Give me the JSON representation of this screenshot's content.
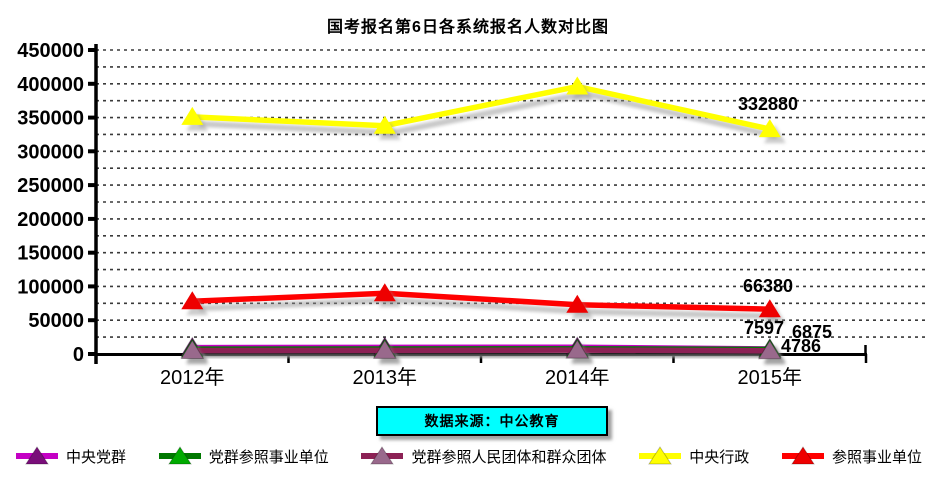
{
  "title": "国考报名第6日各系统报名人数对比图",
  "source_box": {
    "text": "数据来源：中公教育",
    "bg_color": "#00FFFF"
  },
  "chart_data": {
    "type": "line",
    "title": "国考报名第6日各系统报名人数对比图",
    "categories": [
      "2012年",
      "2013年",
      "2014年",
      "2015年"
    ],
    "ylim": [
      0,
      450000
    ],
    "y_tick_step": 50000,
    "grid_step": 25000,
    "y_tick_labels": [
      "0",
      "50000",
      "100000",
      "150000",
      "200000",
      "250000",
      "300000",
      "350000",
      "400000",
      "450000"
    ],
    "grid": true,
    "grid_style": "dashed",
    "legend_position": "bottom",
    "series": [
      {
        "name": "中央党群",
        "line_color": "#C400C4",
        "marker_color": "#7A0E7A",
        "marker": "triangle",
        "values": [
          9500,
          9800,
          10000,
          7597
        ],
        "labeled_value": 7597
      },
      {
        "name": "党群参照事业单位",
        "line_color": "#007800",
        "marker_color": "#00AA00",
        "marker": "triangle",
        "values": [
          7200,
          7400,
          7600,
          6875
        ],
        "labeled_value": 6875
      },
      {
        "name": "党群参照人民团体和群众团体",
        "line_color": "#8C2155",
        "marker_color": "#99698C",
        "marker": "triangle",
        "values": [
          5200,
          5400,
          5700,
          4786
        ],
        "labeled_value": 4786
      },
      {
        "name": "中央行政",
        "line_color": "#FFFF00",
        "marker_color": "#FFFF00",
        "marker": "triangle",
        "values": [
          351000,
          338000,
          396000,
          332880
        ],
        "labeled_value": 332880
      },
      {
        "name": "参照事业单位",
        "line_color": "#FF0000",
        "marker_color": "#EE0000",
        "marker": "triangle",
        "values": [
          78000,
          90000,
          73000,
          66380
        ],
        "labeled_value": 66380
      }
    ],
    "annotations": [
      {
        "text": "332880",
        "x": 768,
        "y": 110
      },
      {
        "text": "66380",
        "x": 768,
        "y": 292
      },
      {
        "text": "7597",
        "x": 764,
        "y": 334
      },
      {
        "text": "6875",
        "x": 812,
        "y": 338
      },
      {
        "text": "4786",
        "x": 801,
        "y": 352
      }
    ],
    "note": "values for unlabeled points estimated from gridlines"
  }
}
